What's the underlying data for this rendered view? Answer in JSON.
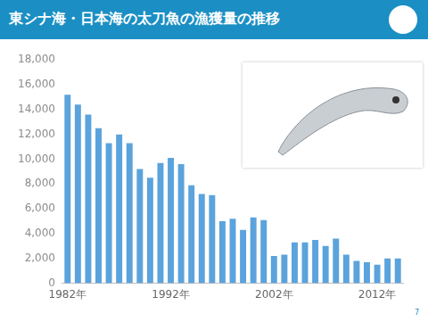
{
  "chart_data": {
    "type": "bar",
    "title": "東シナ海・日本海の太刀魚の漁獲量の推移",
    "categories": [
      "1982年",
      null,
      null,
      null,
      null,
      null,
      null,
      null,
      null,
      null,
      "1992年",
      null,
      null,
      null,
      null,
      null,
      null,
      null,
      null,
      null,
      "2002年",
      null,
      null,
      null,
      null,
      null,
      null,
      null,
      null,
      null,
      "2012年",
      null,
      null
    ],
    "values": [
      15200,
      14400,
      13600,
      12500,
      11300,
      12000,
      11300,
      9200,
      8500,
      9700,
      10100,
      9600,
      7900,
      7200,
      7100,
      5000,
      5200,
      4300,
      5300,
      5100,
      2200,
      2300,
      3300,
      3300,
      3500,
      3000,
      3600,
      2300,
      1800,
      1700,
      1500,
      2000,
      2000
    ],
    "color": "#5ba3dc",
    "ylim": [
      0,
      18000
    ],
    "yticks": [
      0,
      {
        "value": 2000,
        "label": "2,000"
      },
      {
        "value": 4000,
        "label": "4,000"
      },
      {
        "value": 6000,
        "label": "6,000"
      },
      {
        "value": 8000,
        "label": "8,000"
      },
      {
        "value": 10000,
        "label": "10,000"
      },
      {
        "value": 12000,
        "label": "12,000"
      },
      {
        "value": 14000,
        "label": "14,000"
      },
      {
        "value": 16000,
        "label": "16,000"
      },
      {
        "value": 18000,
        "label": "18,000"
      }
    ],
    "grid": false
  },
  "page_number": "7"
}
